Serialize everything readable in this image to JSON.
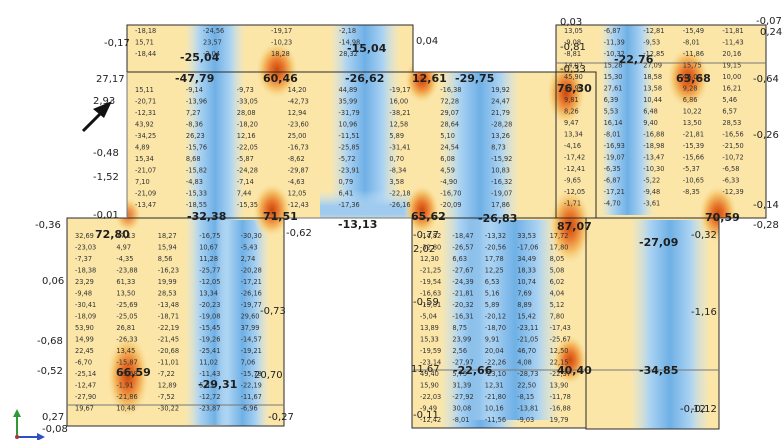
{
  "colors": {
    "background": "#ffffff",
    "positive_light": "#fbe8b0",
    "positive_mid": "#f5c36a",
    "positive_peak": "#e25a12",
    "negative_light": "#cfe6f8",
    "negative_mid": "#8ec3ec",
    "negative_peak": "#5fa6df",
    "outline": "#2a2a2a",
    "text": "#222222",
    "axis_green": "#2f9a35",
    "axis_blue": "#2f4fc4"
  },
  "icons": {
    "axis_triad": "xyz-axes-icon",
    "pointer": "arrow-icon"
  },
  "edge_labels": {
    "a": "-0,17",
    "b": "0,04",
    "c": "27,17",
    "d": "2,93",
    "e": "-0,48",
    "f": "-1,52",
    "g": "-0,01",
    "h": "-0,36",
    "i": "0,06",
    "j": "-0,68",
    "k": "-0,52",
    "l": "0,27",
    "m": "-0,08",
    "n": "-0,62",
    "o": "-0,77",
    "p": "2,02",
    "q": "-0,59",
    "r": "11,67",
    "s": "-0,11",
    "t": "0,03",
    "u": "-0,81",
    "v": "-0,33",
    "w": "-0,07",
    "x": "0,24",
    "y": "-0,64",
    "z": "-0,26",
    "aa": "-0,14",
    "ab": "-0,28",
    "ac": "-0,12",
    "ad": "-0,73",
    "ae": "20,70",
    "af": "-0,27",
    "ag": "-0,12",
    "ah": "-1,16",
    "ai": "-0,32"
  },
  "peak_labels": [
    "-25,04",
    "-47,79",
    "60,46",
    "-26,62",
    "-15,04",
    "12,61",
    "-29,75",
    "76,30",
    "-22,76",
    "63,68",
    "-32,38",
    "71,51",
    "65,62",
    "-26,83",
    "87,07",
    "-27,09",
    "70,59",
    "72,80",
    "66,59",
    "-29,31",
    "-13,13",
    "-22,66",
    "40,40",
    "-34,85"
  ],
  "minor_labels": [
    "-18,18",
    "-24,56",
    "-19,17",
    "-2,18",
    "15,71",
    "23,57",
    "-10,23",
    "-14,98",
    "-18,44",
    "-2,04",
    "18,28",
    "28,32",
    "15,11",
    "-9,14",
    "-9,73",
    "14,20",
    "44,89",
    "-19,17",
    "-16,38",
    "19,92",
    "-20,71",
    "-13,96",
    "-33,05",
    "-42,73",
    "35,99",
    "16,00",
    "72,28",
    "24,47",
    "-12,31",
    "7,27",
    "28,08",
    "12,94",
    "-31,79",
    "-38,21",
    "29,07",
    "21,79",
    "43,92",
    "-8,36",
    "-18,20",
    "-23,60",
    "10,96",
    "12,58",
    "28,64",
    "-28,28",
    "-34,25",
    "26,23",
    "12,16",
    "25,00",
    "-11,51",
    "5,89",
    "5,10",
    "13,26",
    "4,89",
    "-15,76",
    "-22,05",
    "-16,73",
    "-25,85",
    "-31,41",
    "24,54",
    "8,73",
    "15,34",
    "8,68",
    "-5,87",
    "-8,62",
    "-5,72",
    "0,70",
    "6,08",
    "-15,92",
    "-21,07",
    "-15,82",
    "-24,28",
    "-29,87",
    "-23,91",
    "-8,34",
    "4,59",
    "10,83",
    "7,10",
    "-4,83",
    "-7,14",
    "-4,63",
    "0,79",
    "3,58",
    "-4,90",
    "-16,32",
    "-21,09",
    "-15,33",
    "7,44",
    "12,05",
    "6,41",
    "-22,18",
    "-16,70",
    "-19,07",
    "-13,47",
    "-18,55",
    "-15,35",
    "-12,43",
    "-17,36",
    "-26,16",
    "-20,09",
    "17,86",
    "32,69",
    "17,13",
    "18,27",
    "-16,75",
    "-30,30",
    "-23,03",
    "4,97",
    "15,94",
    "10,67",
    "-5,43",
    "-7,37",
    "-4,35",
    "8,56",
    "11,28",
    "2,74",
    "-18,38",
    "-23,88",
    "-16,23",
    "-25,77",
    "-20,28",
    "23,29",
    "61,33",
    "19,99",
    "-12,05",
    "-17,21",
    "-9,48",
    "13,50",
    "28,53",
    "13,34",
    "-26,16",
    "-30,41",
    "-25,69",
    "-13,48",
    "-20,23",
    "-19,77",
    "-18,09",
    "-25,05",
    "-18,71",
    "-19,08",
    "29,60",
    "53,90",
    "26,81",
    "-22,19",
    "-15,45",
    "37,99",
    "14,99",
    "-26,33",
    "-21,45",
    "-19,26",
    "-14,57",
    "22,45",
    "13,45",
    "-20,68",
    "-25,41",
    "-19,21",
    "-6,70",
    "-15,87",
    "-11,01",
    "11,02",
    "7,06",
    "-25,14",
    "-19,68",
    "-7,22",
    "-11,43",
    "-15,79",
    "-12,47",
    "-1,91",
    "12,89",
    "5,53",
    "-22,19",
    "-27,90",
    "-21,86",
    "-7,52",
    "-12,72",
    "-11,67",
    "19,67",
    "10,48",
    "-30,22",
    "-23,87",
    "-6,96",
    "-14,82",
    "-18,47",
    "-13,32",
    "33,53",
    "17,72",
    "-32,80",
    "-26,57",
    "-20,56",
    "-17,06",
    "17,80",
    "12,30",
    "6,63",
    "17,78",
    "34,49",
    "8,05",
    "-21,25",
    "-27,67",
    "12,25",
    "18,33",
    "5,08",
    "-19,54",
    "-24,39",
    "6,53",
    "10,74",
    "6,02",
    "-16,63",
    "-21,81",
    "5,16",
    "7,69",
    "4,04",
    "-15,01",
    "-20,32",
    "5,89",
    "8,89",
    "5,12",
    "-5,04",
    "-16,31",
    "-20,12",
    "15,42",
    "7,80",
    "13,89",
    "8,75",
    "-18,70",
    "-23,11",
    "-17,43",
    "15,33",
    "23,99",
    "9,91",
    "-21,05",
    "-25,67",
    "-19,59",
    "2,56",
    "20,04",
    "46,70",
    "12,50",
    "-23,14",
    "-27,97",
    "-22,26",
    "4,08",
    "22,15",
    "49,40",
    "5,75",
    "-23,10",
    "-28,73",
    "-22,37",
    "15,90",
    "31,39",
    "12,31",
    "22,50",
    "13,90",
    "-22,03",
    "-27,92",
    "-21,80",
    "-8,15",
    "-11,78",
    "-9,49",
    "30,08",
    "10,16",
    "-13,81",
    "-16,88",
    "-12,42",
    "-8,01",
    "-11,56",
    "-9,03",
    "19,79",
    "13,05",
    "-6,87",
    "-12,81",
    "-15,49",
    "-11,81",
    "-9,08",
    "-11,39",
    "-9,53",
    "-8,01",
    "-11,43",
    "-8,81",
    "-10,32",
    "-12,85",
    "-11,86",
    "20,16",
    "14,07",
    "15,28",
    "27,09",
    "15,75",
    "19,15",
    "45,90",
    "15,30",
    "18,58",
    "46,00",
    "10,00",
    "13,99",
    "27,61",
    "13,58",
    "9,28",
    "16,21",
    "9,81",
    "6,39",
    "10,44",
    "6,86",
    "5,46",
    "8,26",
    "5,53",
    "6,48",
    "10,22",
    "6,57",
    "9,47",
    "16,14",
    "9,40",
    "13,50",
    "28,53",
    "13,34",
    "-8,01",
    "-16,88",
    "-21,81",
    "-16,56",
    "-4,16",
    "-16,93",
    "-18,98",
    "-15,39",
    "-21,50",
    "-17,42",
    "-19,07",
    "-13,47",
    "-15,66",
    "-10,72",
    "-12,41",
    "-6,35",
    "-10,30",
    "-5,37",
    "-6,58",
    "-9,65",
    "-6,87",
    "-5,22",
    "-10,65",
    "-6,33",
    "-12,05",
    "-17,21",
    "-9,48",
    "-8,35",
    "-12,39",
    "-1,71",
    "-4,70",
    "-3,61"
  ]
}
